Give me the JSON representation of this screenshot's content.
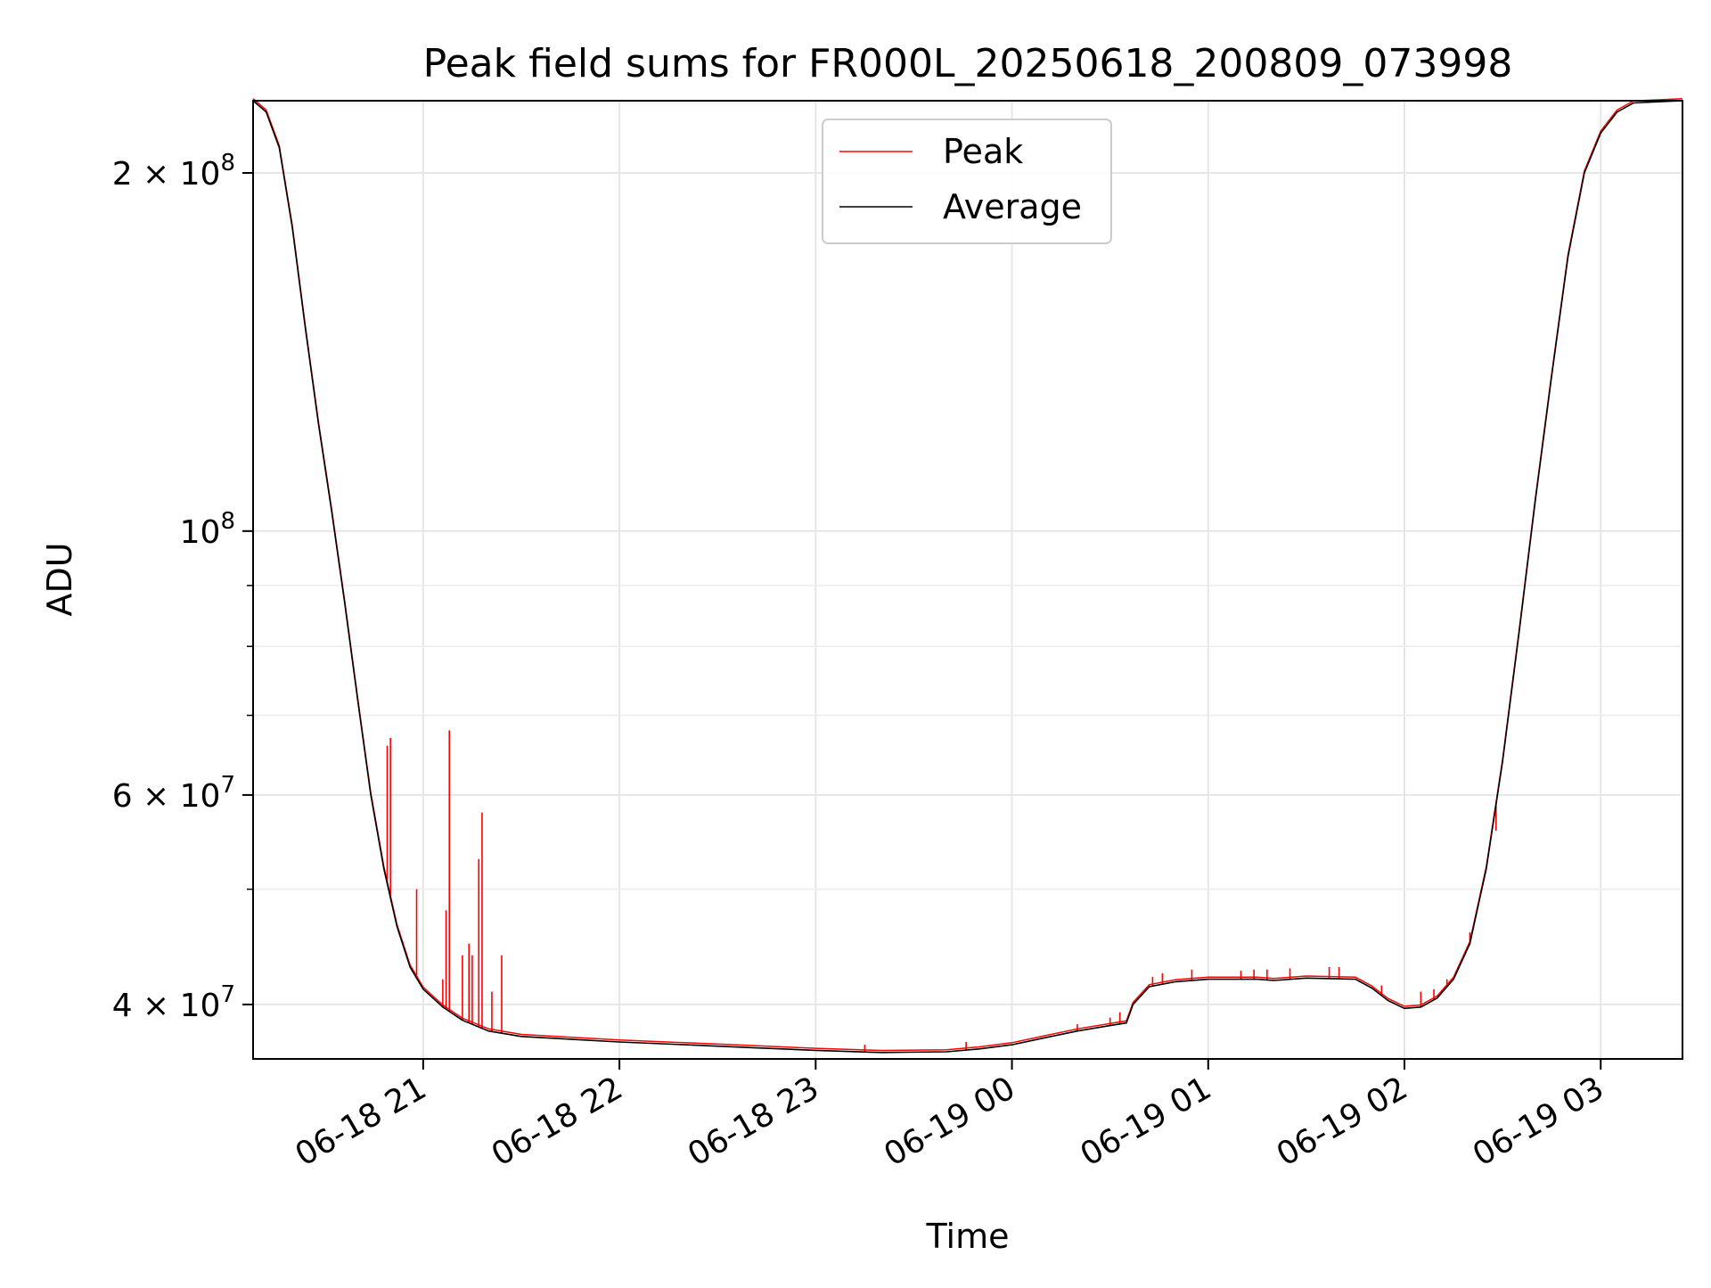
{
  "chart_data": {
    "type": "line",
    "title": "Peak field sums for FR000L_20250618_200809_073998",
    "xlabel": "Time",
    "ylabel": "ADU",
    "y_scale": "log",
    "x_range": [
      "2025-06-18 20:08",
      "2025-06-19 03:25"
    ],
    "y_range": [
      36000000,
      230000000
    ],
    "grid": true,
    "legend_position": "top-center",
    "x_ticks": [
      {
        "t": "2025-06-18 21:00",
        "label": "06-18 21"
      },
      {
        "t": "2025-06-18 22:00",
        "label": "06-18 22"
      },
      {
        "t": "2025-06-18 23:00",
        "label": "06-18 23"
      },
      {
        "t": "2025-06-19 00:00",
        "label": "06-19 00"
      },
      {
        "t": "2025-06-19 01:00",
        "label": "06-19 01"
      },
      {
        "t": "2025-06-19 02:00",
        "label": "06-19 02"
      },
      {
        "t": "2025-06-19 03:00",
        "label": "06-19 03"
      }
    ],
    "y_ticks": [
      {
        "value": 40000000,
        "mantissa": "4",
        "exp": "7"
      },
      {
        "value": 60000000,
        "mantissa": "6",
        "exp": "7"
      },
      {
        "value": 100000000,
        "mantissa": "",
        "exp": "8"
      },
      {
        "value": 200000000,
        "mantissa": "2",
        "exp": "8"
      }
    ],
    "y_minor_ticks": [
      50000000,
      70000000,
      80000000,
      90000000
    ],
    "series": [
      {
        "name": "Average",
        "color": "#000000",
        "points": [
          [
            "2025-06-18 20:08",
            230000000
          ],
          [
            "2025-06-18 20:12",
            225000000
          ],
          [
            "2025-06-18 20:16",
            210000000
          ],
          [
            "2025-06-18 20:20",
            180000000
          ],
          [
            "2025-06-18 20:24",
            148000000
          ],
          [
            "2025-06-18 20:28",
            123000000
          ],
          [
            "2025-06-18 20:32",
            104000000
          ],
          [
            "2025-06-18 20:36",
            87000000
          ],
          [
            "2025-06-18 20:40",
            72000000
          ],
          [
            "2025-06-18 20:44",
            60000000
          ],
          [
            "2025-06-18 20:48",
            52000000
          ],
          [
            "2025-06-18 20:52",
            46500000
          ],
          [
            "2025-06-18 20:56",
            43000000
          ],
          [
            "2025-06-18 21:00",
            41200000
          ],
          [
            "2025-06-18 21:06",
            39800000
          ],
          [
            "2025-06-18 21:12",
            38800000
          ],
          [
            "2025-06-18 21:20",
            38000000
          ],
          [
            "2025-06-18 21:30",
            37600000
          ],
          [
            "2025-06-18 21:45",
            37400000
          ],
          [
            "2025-06-18 22:00",
            37200000
          ],
          [
            "2025-06-18 22:20",
            37000000
          ],
          [
            "2025-06-18 22:40",
            36800000
          ],
          [
            "2025-06-18 23:00",
            36600000
          ],
          [
            "2025-06-18 23:20",
            36450000
          ],
          [
            "2025-06-18 23:40",
            36500000
          ],
          [
            "2025-06-18 23:50",
            36700000
          ],
          [
            "2025-06-19 00:00",
            37000000
          ],
          [
            "2025-06-19 00:10",
            37500000
          ],
          [
            "2025-06-19 00:20",
            38000000
          ],
          [
            "2025-06-19 00:30",
            38400000
          ],
          [
            "2025-06-19 00:35",
            38600000
          ],
          [
            "2025-06-19 00:37",
            40000000
          ],
          [
            "2025-06-19 00:42",
            41400000
          ],
          [
            "2025-06-19 00:50",
            41800000
          ],
          [
            "2025-06-19 01:00",
            42000000
          ],
          [
            "2025-06-19 01:15",
            42000000
          ],
          [
            "2025-06-19 01:20",
            41900000
          ],
          [
            "2025-06-19 01:30",
            42100000
          ],
          [
            "2025-06-19 01:45",
            42000000
          ],
          [
            "2025-06-19 01:50",
            41300000
          ],
          [
            "2025-06-19 01:55",
            40300000
          ],
          [
            "2025-06-19 02:00",
            39700000
          ],
          [
            "2025-06-19 02:05",
            39800000
          ],
          [
            "2025-06-19 02:10",
            40500000
          ],
          [
            "2025-06-19 02:15",
            42000000
          ],
          [
            "2025-06-19 02:20",
            45000000
          ],
          [
            "2025-06-19 02:25",
            52000000
          ],
          [
            "2025-06-19 02:30",
            64000000
          ],
          [
            "2025-06-19 02:35",
            82000000
          ],
          [
            "2025-06-19 02:40",
            106000000
          ],
          [
            "2025-06-19 02:45",
            135000000
          ],
          [
            "2025-06-19 02:50",
            170000000
          ],
          [
            "2025-06-19 02:55",
            200000000
          ],
          [
            "2025-06-19 03:00",
            216000000
          ],
          [
            "2025-06-19 03:05",
            225000000
          ],
          [
            "2025-06-19 03:10",
            229000000
          ],
          [
            "2025-06-19 03:25",
            230000000
          ]
        ]
      },
      {
        "name": "Peak",
        "color": "#ff0000",
        "spikes": [
          [
            "2025-06-18 20:49",
            66000000
          ],
          [
            "2025-06-18 20:50",
            67000000
          ],
          [
            "2025-06-18 20:58",
            50000000
          ],
          [
            "2025-06-18 21:06",
            42000000
          ],
          [
            "2025-06-18 21:07",
            48000000
          ],
          [
            "2025-06-18 21:08",
            68000000
          ],
          [
            "2025-06-18 21:12",
            44000000
          ],
          [
            "2025-06-18 21:14",
            45000000
          ],
          [
            "2025-06-18 21:15",
            44000000
          ],
          [
            "2025-06-18 21:17",
            53000000
          ],
          [
            "2025-06-18 21:18",
            58000000
          ],
          [
            "2025-06-18 21:21",
            41000000
          ],
          [
            "2025-06-18 21:24",
            44000000
          ],
          [
            "2025-06-18 23:15",
            37000000
          ],
          [
            "2025-06-18 23:46",
            37200000
          ],
          [
            "2025-06-19 00:20",
            38500000
          ],
          [
            "2025-06-19 00:30",
            39000000
          ],
          [
            "2025-06-19 00:33",
            39400000
          ],
          [
            "2025-06-19 00:43",
            42200000
          ],
          [
            "2025-06-19 00:46",
            42500000
          ],
          [
            "2025-06-19 00:55",
            42800000
          ],
          [
            "2025-06-19 01:10",
            42700000
          ],
          [
            "2025-06-19 01:14",
            42800000
          ],
          [
            "2025-06-19 01:18",
            42800000
          ],
          [
            "2025-06-19 01:25",
            42900000
          ],
          [
            "2025-06-19 01:37",
            43000000
          ],
          [
            "2025-06-19 01:40",
            43000000
          ],
          [
            "2025-06-19 01:53",
            41500000
          ],
          [
            "2025-06-19 02:05",
            41000000
          ],
          [
            "2025-06-19 02:09",
            41200000
          ],
          [
            "2025-06-19 02:13",
            42000000
          ],
          [
            "2025-06-19 02:20",
            46000000
          ],
          [
            "2025-06-19 02:28",
            56000000
          ]
        ]
      }
    ]
  }
}
